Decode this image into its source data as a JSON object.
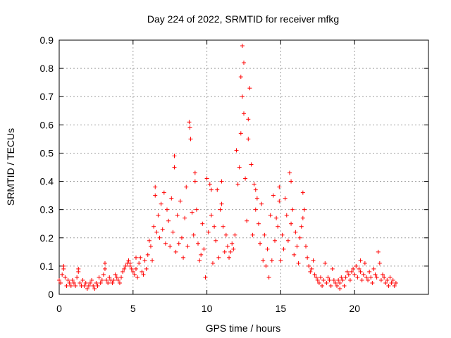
{
  "chart_data": {
    "type": "scatter",
    "title": "Day 224 of 2022, SRMTID for receiver mfkg",
    "xlabel": "GPS time / hours",
    "ylabel": "SRMTID / TECUs",
    "xlim": [
      0,
      25
    ],
    "ylim": [
      0,
      0.9
    ],
    "xticks": [
      0,
      5,
      10,
      15,
      20
    ],
    "xtick_labels": [
      "0",
      "5",
      "10",
      "15",
      "20"
    ],
    "yticks": [
      0,
      0.1,
      0.2,
      0.3,
      0.4,
      0.5,
      0.6,
      0.7,
      0.8,
      0.9
    ],
    "ytick_labels": [
      "0",
      "0.1",
      "0.2",
      "0.3",
      "0.4",
      "0.5",
      "0.6",
      "0.7",
      "0.8",
      "0.9"
    ],
    "grid": true,
    "marker": "+",
    "color": "#ff0000",
    "series": [
      {
        "name": "SRMTID",
        "points": [
          [
            0.0,
            0.05
          ],
          [
            0.1,
            0.04
          ],
          [
            0.2,
            0.07
          ],
          [
            0.3,
            0.09
          ],
          [
            0.4,
            0.06
          ],
          [
            0.5,
            0.03
          ],
          [
            0.6,
            0.05
          ],
          [
            0.7,
            0.04
          ],
          [
            0.8,
            0.03
          ],
          [
            0.9,
            0.05
          ],
          [
            1.0,
            0.04
          ],
          [
            1.1,
            0.03
          ],
          [
            1.2,
            0.06
          ],
          [
            1.3,
            0.08
          ],
          [
            1.4,
            0.04
          ],
          [
            1.5,
            0.03
          ],
          [
            1.6,
            0.05
          ],
          [
            1.7,
            0.03
          ],
          [
            1.8,
            0.04
          ],
          [
            1.9,
            0.02
          ],
          [
            2.0,
            0.03
          ],
          [
            2.1,
            0.04
          ],
          [
            2.2,
            0.05
          ],
          [
            2.3,
            0.03
          ],
          [
            2.4,
            0.02
          ],
          [
            2.5,
            0.04
          ],
          [
            2.6,
            0.03
          ],
          [
            2.7,
            0.06
          ],
          [
            2.8,
            0.04
          ],
          [
            2.9,
            0.05
          ],
          [
            3.0,
            0.07
          ],
          [
            3.1,
            0.11
          ],
          [
            3.2,
            0.05
          ],
          [
            3.3,
            0.04
          ],
          [
            3.4,
            0.06
          ],
          [
            3.5,
            0.05
          ],
          [
            3.6,
            0.04
          ],
          [
            3.7,
            0.05
          ],
          [
            3.8,
            0.07
          ],
          [
            3.9,
            0.06
          ],
          [
            4.0,
            0.05
          ],
          [
            4.1,
            0.04
          ],
          [
            4.2,
            0.06
          ],
          [
            4.3,
            0.08
          ],
          [
            4.4,
            0.09
          ],
          [
            4.5,
            0.1
          ],
          [
            4.6,
            0.11
          ],
          [
            4.7,
            0.12
          ],
          [
            4.8,
            0.1
          ],
          [
            4.9,
            0.09
          ],
          [
            5.0,
            0.08
          ],
          [
            5.1,
            0.07
          ],
          [
            5.2,
            0.09
          ],
          [
            5.3,
            0.06
          ],
          [
            5.4,
            0.11
          ],
          [
            5.5,
            0.13
          ],
          [
            5.6,
            0.08
          ],
          [
            5.7,
            0.07
          ],
          [
            5.8,
            0.12
          ],
          [
            5.9,
            0.09
          ],
          [
            6.0,
            0.14
          ],
          [
            6.1,
            0.19
          ],
          [
            6.2,
            0.17
          ],
          [
            6.3,
            0.12
          ],
          [
            6.4,
            0.24
          ],
          [
            6.5,
            0.38
          ],
          [
            6.6,
            0.22
          ],
          [
            6.7,
            0.28
          ],
          [
            6.8,
            0.2
          ],
          [
            6.9,
            0.32
          ],
          [
            7.0,
            0.23
          ],
          [
            7.1,
            0.36
          ],
          [
            7.2,
            0.18
          ],
          [
            7.3,
            0.3
          ],
          [
            7.4,
            0.26
          ],
          [
            7.5,
            0.17
          ],
          [
            7.6,
            0.34
          ],
          [
            7.7,
            0.22
          ],
          [
            7.8,
            0.49
          ],
          [
            7.9,
            0.15
          ],
          [
            8.0,
            0.28
          ],
          [
            8.1,
            0.18
          ],
          [
            8.2,
            0.33
          ],
          [
            8.3,
            0.2
          ],
          [
            8.4,
            0.13
          ],
          [
            8.5,
            0.27
          ],
          [
            8.6,
            0.38
          ],
          [
            8.7,
            0.17
          ],
          [
            8.8,
            0.61
          ],
          [
            8.9,
            0.55
          ],
          [
            9.0,
            0.29
          ],
          [
            9.1,
            0.21
          ],
          [
            9.2,
            0.43
          ],
          [
            9.3,
            0.3
          ],
          [
            9.4,
            0.18
          ],
          [
            9.5,
            0.12
          ],
          [
            9.6,
            0.14
          ],
          [
            9.7,
            0.25
          ],
          [
            9.8,
            0.16
          ],
          [
            9.9,
            0.06
          ],
          [
            10.0,
            0.41
          ],
          [
            10.1,
            0.22
          ],
          [
            10.2,
            0.39
          ],
          [
            10.3,
            0.28
          ],
          [
            10.4,
            0.11
          ],
          [
            10.5,
            0.24
          ],
          [
            10.6,
            0.19
          ],
          [
            10.7,
            0.37
          ],
          [
            10.8,
            0.13
          ],
          [
            10.9,
            0.3
          ],
          [
            11.0,
            0.4
          ],
          [
            11.1,
            0.24
          ],
          [
            11.2,
            0.15
          ],
          [
            11.3,
            0.21
          ],
          [
            11.4,
            0.17
          ],
          [
            11.5,
            0.13
          ],
          [
            11.6,
            0.15
          ],
          [
            11.7,
            0.18
          ],
          [
            11.8,
            0.16
          ],
          [
            11.9,
            0.21
          ],
          [
            12.0,
            0.51
          ],
          [
            12.1,
            0.39
          ],
          [
            12.2,
            0.45
          ],
          [
            12.3,
            0.77
          ],
          [
            12.4,
            0.88
          ],
          [
            12.5,
            0.64
          ],
          [
            12.6,
            0.41
          ],
          [
            12.7,
            0.26
          ],
          [
            12.8,
            0.55
          ],
          [
            12.9,
            0.73
          ],
          [
            13.0,
            0.46
          ],
          [
            13.1,
            0.21
          ],
          [
            13.2,
            0.39
          ],
          [
            13.3,
            0.3
          ],
          [
            13.4,
            0.34
          ],
          [
            13.5,
            0.25
          ],
          [
            13.6,
            0.18
          ],
          [
            13.7,
            0.32
          ],
          [
            13.8,
            0.12
          ],
          [
            13.9,
            0.21
          ],
          [
            14.0,
            0.1
          ],
          [
            14.1,
            0.16
          ],
          [
            14.2,
            0.06
          ],
          [
            14.3,
            0.28
          ],
          [
            14.4,
            0.12
          ],
          [
            14.5,
            0.35
          ],
          [
            14.6,
            0.19
          ],
          [
            14.7,
            0.27
          ],
          [
            14.8,
            0.24
          ],
          [
            14.9,
            0.38
          ],
          [
            15.0,
            0.12
          ],
          [
            15.1,
            0.21
          ],
          [
            15.2,
            0.16
          ],
          [
            15.3,
            0.34
          ],
          [
            15.4,
            0.28
          ],
          [
            15.5,
            0.19
          ],
          [
            15.6,
            0.43
          ],
          [
            15.7,
            0.25
          ],
          [
            15.8,
            0.3
          ],
          [
            15.9,
            0.14
          ],
          [
            16.0,
            0.22
          ],
          [
            16.1,
            0.17
          ],
          [
            16.2,
            0.11
          ],
          [
            16.3,
            0.2
          ],
          [
            16.4,
            0.24
          ],
          [
            16.5,
            0.36
          ],
          [
            16.6,
            0.3
          ],
          [
            16.7,
            0.17
          ],
          [
            16.8,
            0.13
          ],
          [
            16.9,
            0.1
          ],
          [
            17.0,
            0.08
          ],
          [
            17.1,
            0.09
          ],
          [
            17.2,
            0.12
          ],
          [
            17.3,
            0.07
          ],
          [
            17.4,
            0.06
          ],
          [
            17.5,
            0.05
          ],
          [
            17.6,
            0.04
          ],
          [
            17.7,
            0.06
          ],
          [
            17.8,
            0.03
          ],
          [
            17.9,
            0.05
          ],
          [
            18.0,
            0.11
          ],
          [
            18.1,
            0.04
          ],
          [
            18.2,
            0.06
          ],
          [
            18.3,
            0.05
          ],
          [
            18.4,
            0.03
          ],
          [
            18.5,
            0.09
          ],
          [
            18.6,
            0.05
          ],
          [
            18.7,
            0.04
          ],
          [
            18.8,
            0.03
          ],
          [
            18.9,
            0.05
          ],
          [
            19.0,
            0.04
          ],
          [
            19.1,
            0.06
          ],
          [
            19.2,
            0.05
          ],
          [
            19.3,
            0.03
          ],
          [
            19.4,
            0.06
          ],
          [
            19.5,
            0.08
          ],
          [
            19.6,
            0.07
          ],
          [
            19.7,
            0.05
          ],
          [
            19.8,
            0.08
          ],
          [
            19.9,
            0.09
          ],
          [
            20.0,
            0.07
          ],
          [
            20.1,
            0.1
          ],
          [
            20.2,
            0.06
          ],
          [
            20.3,
            0.09
          ],
          [
            20.4,
            0.08
          ],
          [
            20.5,
            0.05
          ],
          [
            20.6,
            0.07
          ],
          [
            20.7,
            0.11
          ],
          [
            20.8,
            0.06
          ],
          [
            20.9,
            0.05
          ],
          [
            21.0,
            0.08
          ],
          [
            21.1,
            0.06
          ],
          [
            21.2,
            0.04
          ],
          [
            21.3,
            0.09
          ],
          [
            21.4,
            0.07
          ],
          [
            21.5,
            0.06
          ],
          [
            21.6,
            0.15
          ],
          [
            21.7,
            0.11
          ],
          [
            21.8,
            0.05
          ],
          [
            21.9,
            0.07
          ],
          [
            22.0,
            0.06
          ],
          [
            22.1,
            0.04
          ],
          [
            22.2,
            0.05
          ],
          [
            22.3,
            0.03
          ],
          [
            22.4,
            0.06
          ],
          [
            22.5,
            0.04
          ],
          [
            22.6,
            0.05
          ],
          [
            22.7,
            0.03
          ],
          [
            22.8,
            0.04
          ],
          [
            8.85,
            0.59
          ],
          [
            7.8,
            0.45
          ],
          [
            6.5,
            0.35
          ],
          [
            9.2,
            0.4
          ],
          [
            10.3,
            0.37
          ],
          [
            12.4,
            0.7
          ],
          [
            12.5,
            0.82
          ],
          [
            12.8,
            0.62
          ],
          [
            13.3,
            0.37
          ],
          [
            14.9,
            0.33
          ],
          [
            15.7,
            0.4
          ],
          [
            16.5,
            0.27
          ],
          [
            11.0,
            0.32
          ],
          [
            12.3,
            0.57
          ],
          [
            5.2,
            0.13
          ],
          [
            4.8,
            0.11
          ],
          [
            3.1,
            0.09
          ],
          [
            1.3,
            0.09
          ],
          [
            0.3,
            0.1
          ],
          [
            19.0,
            0.02
          ],
          [
            20.4,
            0.12
          ]
        ]
      }
    ]
  }
}
